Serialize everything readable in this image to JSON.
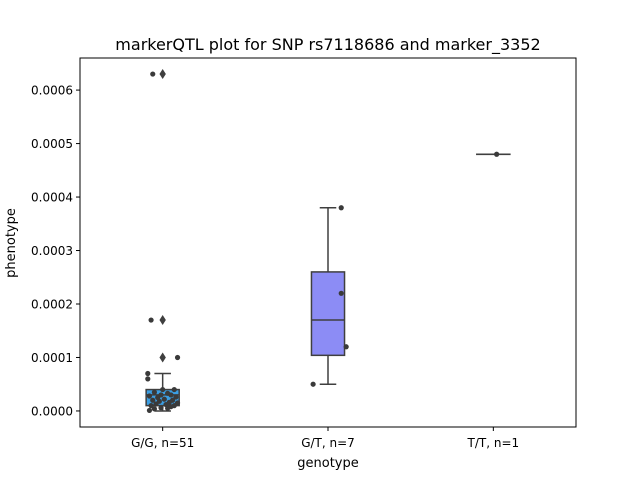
{
  "chart_data": {
    "type": "box",
    "title": "markerQTL plot for SNP rs7118686 and marker_3352",
    "xlabel": "genotype",
    "ylabel": "phenotype",
    "ylim": [
      -3e-05,
      0.00066
    ],
    "yticks": [
      0.0,
      0.0001,
      0.0002,
      0.0003,
      0.0004,
      0.0005,
      0.0006
    ],
    "ytick_labels": [
      "0.0000",
      "0.0001",
      "0.0002",
      "0.0003",
      "0.0004",
      "0.0005",
      "0.0006"
    ],
    "categories": [
      "G/G, n=51",
      "G/T, n=7",
      "T/T, n=1"
    ],
    "boxes": [
      {
        "category": "G/G, n=51",
        "color": "#3b9ee3",
        "q1": 1e-05,
        "median": 3e-05,
        "q3": 4e-05,
        "whisker_low": 0.0,
        "whisker_high": 7e-05,
        "outliers": [
          0.0001,
          0.00017,
          0.00063
        ]
      },
      {
        "category": "G/T, n=7",
        "color": "#8c8cf5",
        "q1": 0.000104,
        "median": 0.00017,
        "q3": 0.00026,
        "whisker_low": 5e-05,
        "whisker_high": 0.00038,
        "outliers": []
      },
      {
        "category": "T/T, n=1",
        "color": "#c070c0",
        "q1": 0.00048,
        "median": 0.00048,
        "q3": 0.00048,
        "whisker_low": 0.00048,
        "whisker_high": 0.00048,
        "outliers": []
      }
    ],
    "points": [
      {
        "cat": 0,
        "jitter": -0.06,
        "y": 0.00063
      },
      {
        "cat": 0,
        "jitter": -0.07,
        "y": 0.00017
      },
      {
        "cat": 0,
        "jitter": 0.09,
        "y": 0.0001
      },
      {
        "cat": 0,
        "jitter": -0.09,
        "y": 7e-05
      },
      {
        "cat": 0,
        "jitter": -0.09,
        "y": 6e-05
      },
      {
        "cat": 0,
        "jitter": 0.07,
        "y": 4e-05
      },
      {
        "cat": 0,
        "jitter": 0.0,
        "y": 4e-05
      },
      {
        "cat": 0,
        "jitter": -0.05,
        "y": 3.5e-05
      },
      {
        "cat": 0,
        "jitter": 0.03,
        "y": 3.3e-05
      },
      {
        "cat": 0,
        "jitter": -0.01,
        "y": 3e-05
      },
      {
        "cat": 0,
        "jitter": 0.05,
        "y": 3e-05
      },
      {
        "cat": 0,
        "jitter": -0.08,
        "y": 2.8e-05
      },
      {
        "cat": 0,
        "jitter": 0.08,
        "y": 2.6e-05
      },
      {
        "cat": 0,
        "jitter": -0.03,
        "y": 2.5e-05
      },
      {
        "cat": 0,
        "jitter": 0.01,
        "y": 2.2e-05
      },
      {
        "cat": 0,
        "jitter": -0.06,
        "y": 2e-05
      },
      {
        "cat": 0,
        "jitter": 0.06,
        "y": 2e-05
      },
      {
        "cat": 0,
        "jitter": -0.02,
        "y": 1.8e-05
      },
      {
        "cat": 0,
        "jitter": 0.04,
        "y": 1.6e-05
      },
      {
        "cat": 0,
        "jitter": 0.09,
        "y": 1.5e-05
      },
      {
        "cat": 0,
        "jitter": -0.04,
        "y": 1.3e-05
      },
      {
        "cat": 0,
        "jitter": 0.02,
        "y": 1.2e-05
      },
      {
        "cat": 0,
        "jitter": 0.07,
        "y": 1e-05
      },
      {
        "cat": 0,
        "jitter": -0.07,
        "y": 1e-05
      },
      {
        "cat": 0,
        "jitter": 0.05,
        "y": 8e-06
      },
      {
        "cat": 0,
        "jitter": -0.01,
        "y": 6e-06
      },
      {
        "cat": 0,
        "jitter": 0.03,
        "y": 5e-06
      },
      {
        "cat": 0,
        "jitter": -0.05,
        "y": 4e-06
      },
      {
        "cat": 0,
        "jitter": -0.08,
        "y": 1e-06
      },
      {
        "cat": 1,
        "jitter": 0.08,
        "y": 0.00038
      },
      {
        "cat": 1,
        "jitter": 0.08,
        "y": 0.00022
      },
      {
        "cat": 1,
        "jitter": 0.11,
        "y": 0.00012
      },
      {
        "cat": 1,
        "jitter": -0.09,
        "y": 5e-05
      },
      {
        "cat": 2,
        "jitter": 0.02,
        "y": 0.00048
      }
    ],
    "grid": false,
    "legend": "none"
  }
}
